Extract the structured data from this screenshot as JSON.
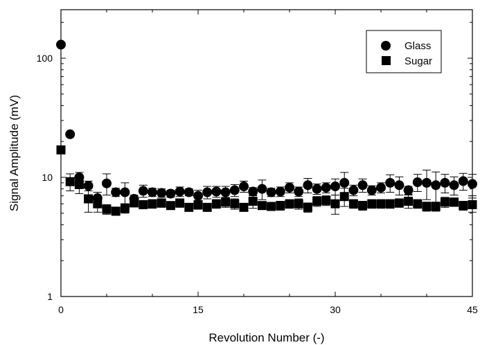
{
  "chart_data": {
    "type": "scatter",
    "xlabel": "Revolution Number (-)",
    "ylabel": "Signal Amplitude (mV)",
    "xlim": [
      0,
      45
    ],
    "ylim": [
      1,
      200
    ],
    "yscale": "log",
    "xticks": [
      0,
      15,
      30,
      45
    ],
    "yticks": [
      1,
      10,
      100
    ],
    "legend_position": "top-right",
    "error_bars": true,
    "series": [
      {
        "name": "Glass",
        "marker": "circle",
        "color": "#000000",
        "x": [
          0,
          1,
          2,
          3,
          4,
          5,
          6,
          7,
          8,
          9,
          10,
          11,
          12,
          13,
          14,
          15,
          16,
          17,
          18,
          19,
          20,
          21,
          22,
          23,
          24,
          25,
          26,
          27,
          28,
          29,
          30,
          31,
          32,
          33,
          34,
          35,
          36,
          37,
          38,
          39,
          40,
          41,
          42,
          43,
          44,
          45
        ],
        "y": [
          130,
          23,
          10,
          8.5,
          6.7,
          8.9,
          7.5,
          7.5,
          6.6,
          7.7,
          7.5,
          7.4,
          7.3,
          7.6,
          7.5,
          7.0,
          7.5,
          7.6,
          7.5,
          7.8,
          8.4,
          7.6,
          8.0,
          7.5,
          7.6,
          8.2,
          7.6,
          8.6,
          8.0,
          8.2,
          8.4,
          9.0,
          7.8,
          8.6,
          7.8,
          8.2,
          9.0,
          8.6,
          7.8,
          9.1,
          9.0,
          8.6,
          9.0,
          8.6,
          9.3,
          8.8
        ],
        "err": [
          0,
          0,
          1.0,
          0.8,
          0.8,
          1.8,
          0.6,
          1.5,
          0.5,
          0.9,
          0.6,
          0.6,
          0.5,
          0.7,
          0.5,
          0.8,
          0.9,
          0.8,
          0.9,
          0.9,
          0.9,
          0.6,
          1.5,
          0.6,
          0.7,
          0.8,
          0.7,
          1.2,
          0.8,
          0.8,
          1.3,
          2.0,
          0.8,
          1.1,
          0.7,
          0.8,
          1.5,
          1.5,
          0.6,
          1.5,
          2.5,
          2.5,
          1.6,
          1.5,
          1.5,
          1.8
        ]
      },
      {
        "name": "Sugar",
        "marker": "square",
        "color": "#000000",
        "x": [
          0,
          1,
          2,
          3,
          4,
          5,
          6,
          7,
          8,
          9,
          10,
          11,
          12,
          13,
          14,
          15,
          16,
          17,
          18,
          19,
          20,
          21,
          22,
          23,
          24,
          25,
          26,
          27,
          28,
          29,
          30,
          31,
          32,
          33,
          34,
          35,
          36,
          37,
          38,
          39,
          40,
          41,
          42,
          43,
          44,
          45
        ],
        "y": [
          17,
          9.2,
          8.7,
          6.6,
          6.0,
          5.4,
          5.2,
          5.5,
          6.1,
          5.9,
          6.0,
          6.1,
          5.8,
          6.1,
          5.6,
          5.9,
          5.6,
          6.0,
          6.2,
          6.0,
          5.6,
          6.3,
          5.8,
          5.7,
          5.8,
          6.0,
          6.0,
          5.6,
          6.3,
          6.4,
          6.0,
          6.9,
          6.0,
          5.8,
          6.0,
          6.0,
          6.0,
          6.1,
          6.3,
          6.0,
          5.7,
          5.7,
          6.2,
          6.2,
          5.8,
          5.9
        ],
        "err": [
          0,
          1.5,
          1.4,
          1.5,
          0.9,
          0.5,
          0.4,
          0.5,
          0.4,
          0.4,
          0.5,
          0.5,
          0.4,
          0.5,
          0.4,
          0.5,
          0.4,
          0.5,
          0.6,
          0.6,
          0.4,
          0.8,
          0.4,
          0.4,
          0.5,
          0.5,
          0.6,
          0.5,
          0.6,
          0.6,
          1.1,
          1.2,
          0.5,
          0.5,
          0.5,
          0.5,
          0.5,
          0.5,
          0.8,
          0.5,
          0.5,
          0.5,
          0.6,
          0.5,
          0.5,
          0.8
        ]
      }
    ]
  }
}
